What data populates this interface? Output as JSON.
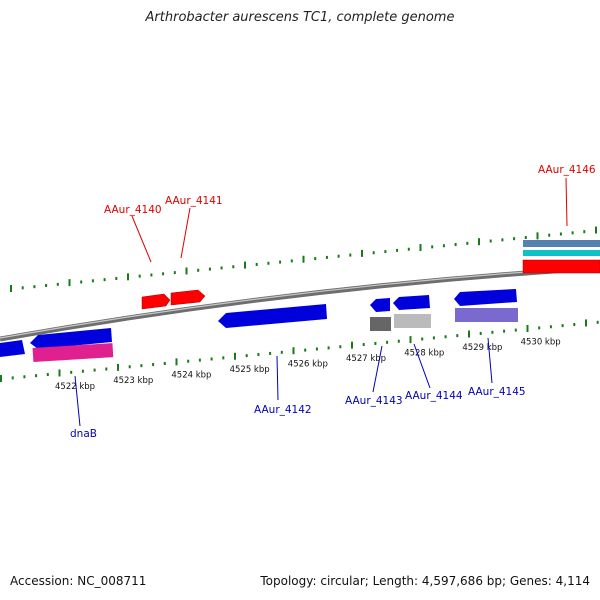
{
  "title": "Arthrobacter aurescens TC1, complete genome",
  "footer": {
    "accession": "Accession: NC_008711",
    "summary": "Topology: circular; Length: 4,597,686 bp; Genes: 4,114"
  },
  "colors": {
    "backbone": "#888888",
    "tick": "#1a7a1a",
    "forward_label": "#dd0000",
    "reverse_label": "#0000bb"
  },
  "scale": {
    "unit": "kbp",
    "tick_labels": [
      "4522 kbp",
      "4523 kbp",
      "4524 kbp",
      "4525 kbp",
      "4526 kbp",
      "4527 kbp",
      "4528 kbp",
      "4529 kbp",
      "4530 kbp"
    ]
  },
  "genes": [
    {
      "label": "dnaB",
      "strand": "reverse",
      "color": "#0000dd"
    },
    {
      "label": "AAur_4140",
      "strand": "forward",
      "color": "#ff0000"
    },
    {
      "label": "AAur_4141",
      "strand": "forward",
      "color": "#ff0000"
    },
    {
      "label": "AAur_4142",
      "strand": "reverse",
      "color": "#0000dd"
    },
    {
      "label": "AAur_4143",
      "strand": "reverse",
      "color": "#0000dd"
    },
    {
      "label": "AAur_4144",
      "strand": "reverse",
      "color": "#0000dd"
    },
    {
      "label": "AAur_4145",
      "strand": "reverse",
      "color": "#0000dd"
    },
    {
      "label": "AAur_4146",
      "strand": "forward",
      "color": "#ff0000"
    }
  ],
  "feature_colors": {
    "magenta": "#e0208e",
    "gray_dark": "#666666",
    "gray_light": "#bbbbbb",
    "lavender": "#7a6ad0",
    "steel": "#5580b0",
    "cyan": "#10c0c8"
  }
}
